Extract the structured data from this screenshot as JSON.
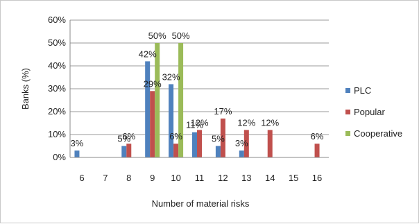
{
  "chart_data": {
    "type": "bar",
    "title": "",
    "xlabel": "Number of material risks",
    "ylabel": "Banks (%)",
    "ylim": [
      0,
      60
    ],
    "yticks": [
      "0%",
      "10%",
      "20%",
      "30%",
      "40%",
      "50%",
      "60%"
    ],
    "categories": [
      "6",
      "7",
      "8",
      "9",
      "10",
      "11",
      "12",
      "13",
      "14",
      "15",
      "16"
    ],
    "grid": "horizontal",
    "legend_position": "right",
    "series": [
      {
        "name": "PLC",
        "color": "#4f81bd",
        "values": [
          3,
          0,
          5,
          42,
          32,
          11,
          5,
          3,
          0,
          0,
          0
        ],
        "labels": [
          "3%",
          "",
          "5%",
          "42%",
          "32%",
          "11%",
          "5%",
          "3%",
          "",
          "",
          ""
        ]
      },
      {
        "name": "Popular",
        "color": "#c0504d",
        "values": [
          0,
          0,
          6,
          29,
          6,
          12,
          17,
          12,
          12,
          0,
          6
        ],
        "labels": [
          "",
          "",
          "6%",
          "29%",
          "6%",
          "12%",
          "17%",
          "12%",
          "12%",
          "",
          "6%"
        ]
      },
      {
        "name": "Cooperative",
        "color": "#9bbb59",
        "values": [
          0,
          0,
          0,
          50,
          50,
          0,
          0,
          0,
          0,
          0,
          0
        ],
        "labels": [
          "",
          "",
          "",
          "50%",
          "50%",
          "",
          "",
          "",
          "",
          "",
          ""
        ]
      }
    ]
  }
}
